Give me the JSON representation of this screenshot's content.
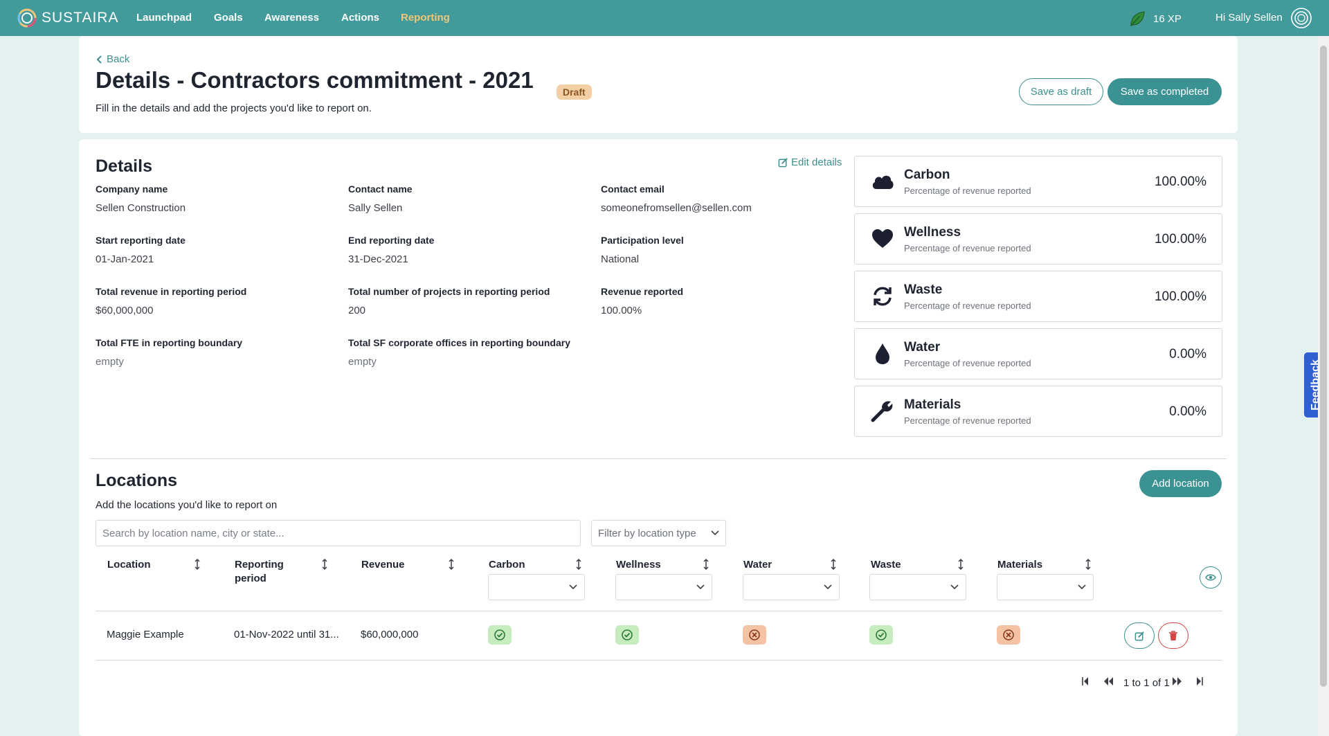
{
  "brand": {
    "name": "SUSTAIRA"
  },
  "nav": {
    "items": [
      {
        "label": "Launchpad"
      },
      {
        "label": "Goals"
      },
      {
        "label": "Awareness"
      },
      {
        "label": "Actions"
      },
      {
        "label": "Reporting"
      }
    ],
    "active": "Reporting",
    "xp": "16 XP",
    "greeting": "Hi Sally Sellen"
  },
  "header": {
    "back_label": "Back",
    "title": "Details - Contractors commitment - 2021",
    "status_badge": "Draft",
    "subtitle": "Fill in the details and add the projects you'd like to report on.",
    "save_draft_label": "Save as draft",
    "save_completed_label": "Save as completed"
  },
  "details": {
    "title": "Details",
    "edit_label": "Edit details",
    "fields": [
      {
        "label": "Company name",
        "value": "Sellen Construction"
      },
      {
        "label": "Contact name",
        "value": "Sally Sellen"
      },
      {
        "label": "Contact email",
        "value": "someonefromsellen@sellen.com"
      },
      {
        "label": "Start reporting date",
        "value": "01-Jan-2021"
      },
      {
        "label": "End reporting date",
        "value": "31-Dec-2021"
      },
      {
        "label": "Participation level",
        "value": "National"
      },
      {
        "label": "Total revenue in reporting period",
        "value": "$60,000,000"
      },
      {
        "label": "Total number of projects in reporting period",
        "value": "200"
      },
      {
        "label": "Revenue reported",
        "value": "100.00%"
      },
      {
        "label": "Total FTE in reporting boundary",
        "value": "empty"
      },
      {
        "label": "Total SF corporate offices in reporting boundary",
        "value": "empty"
      }
    ]
  },
  "metrics": [
    {
      "name": "Carbon",
      "sub": "Percentage of revenue reported",
      "value": "100.00%",
      "icon": "cloud-icon"
    },
    {
      "name": "Wellness",
      "sub": "Percentage of revenue reported",
      "value": "100.00%",
      "icon": "heart-icon"
    },
    {
      "name": "Waste",
      "sub": "Percentage of revenue reported",
      "value": "100.00%",
      "icon": "recycle-icon"
    },
    {
      "name": "Water",
      "sub": "Percentage of revenue reported",
      "value": "0.00%",
      "icon": "water-drop-icon"
    },
    {
      "name": "Materials",
      "sub": "Percentage of revenue reported",
      "value": "0.00%",
      "icon": "wrench-icon"
    }
  ],
  "locations": {
    "title": "Locations",
    "subtitle": "Add the locations you'd like to report on",
    "add_label": "Add location",
    "search_placeholder": "Search by location name, city or state...",
    "filter_placeholder": "Filter by location type",
    "columns": [
      "Location",
      "Reporting period",
      "Revenue",
      "Carbon",
      "Wellness",
      "Water",
      "Waste",
      "Materials"
    ],
    "rows": [
      {
        "location": "Maggie Example",
        "period": "01-Nov-2022 until 31...",
        "revenue": "$60,000,000",
        "carbon": "complete",
        "wellness": "complete",
        "water": "incomplete",
        "waste": "complete",
        "materials": "incomplete"
      }
    ],
    "pagination": "1 to 1 of 1"
  },
  "feedback_label": "Feedback",
  "colors": {
    "nav_bg": "#429a9a",
    "accent": "#3b8f8f",
    "nav_active": "#f1c67a",
    "draft_badge": "#f3cfa6",
    "status_ok": "#c7ecc0",
    "status_no": "#f3c3a4",
    "danger": "#d24545",
    "feedback": "#2f5fd0"
  }
}
